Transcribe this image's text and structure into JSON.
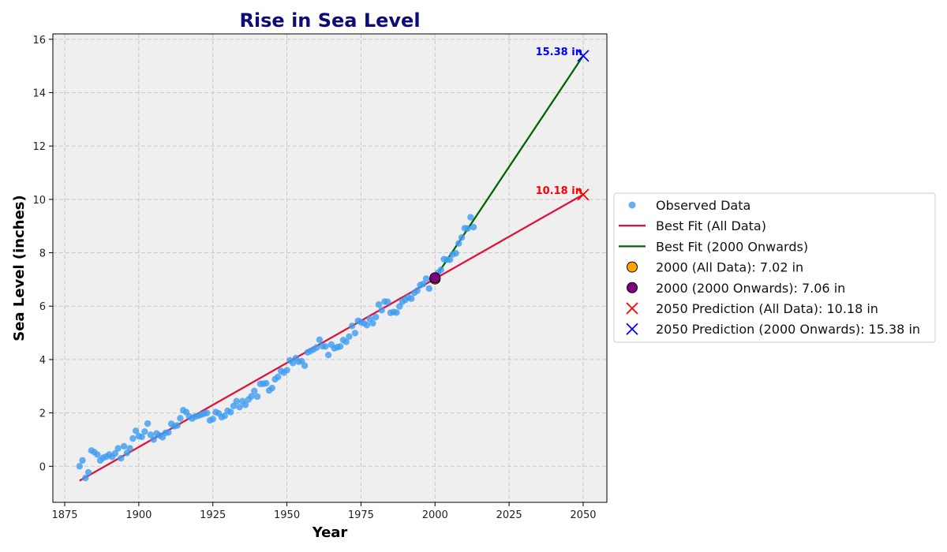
{
  "colors": {
    "plot_background": "#efefef",
    "grid": "#c8c8c8",
    "title": "#0b0b7a",
    "observed": "#3d9cf0",
    "fit_all": "#dc143c",
    "fit_recent": "#006400",
    "marker_2000_all": "#ffa500",
    "marker_2000_recent": "#800080",
    "pred_all": "#ff0000",
    "pred_recent": "#0000ff"
  },
  "chart_data": {
    "type": "scatter",
    "title": "Rise in Sea Level",
    "xlabel": "Year",
    "ylabel": "Sea Level (inches)",
    "xlim": [
      1871,
      2058
    ],
    "ylim": [
      -1.35,
      16.2
    ],
    "xticks": [
      1875,
      1900,
      1925,
      1950,
      1975,
      2000,
      2025,
      2050
    ],
    "yticks": [
      0,
      2,
      4,
      6,
      8,
      10,
      12,
      14,
      16
    ],
    "grid": true,
    "legend_position": "center-right-outside",
    "series": [
      {
        "name": "Observed Data",
        "kind": "scatter",
        "x": [
          1880,
          1881,
          1882,
          1883,
          1884,
          1885,
          1886,
          1887,
          1888,
          1889,
          1890,
          1891,
          1892,
          1893,
          1894,
          1895,
          1896,
          1897,
          1898,
          1899,
          1900,
          1901,
          1902,
          1903,
          1904,
          1905,
          1906,
          1907,
          1908,
          1909,
          1910,
          1911,
          1912,
          1913,
          1914,
          1915,
          1916,
          1917,
          1918,
          1919,
          1920,
          1921,
          1922,
          1923,
          1924,
          1925,
          1926,
          1927,
          1928,
          1929,
          1930,
          1931,
          1932,
          1933,
          1934,
          1935,
          1936,
          1937,
          1938,
          1939,
          1940,
          1941,
          1942,
          1943,
          1944,
          1945,
          1946,
          1947,
          1948,
          1949,
          1950,
          1951,
          1952,
          1953,
          1954,
          1955,
          1956,
          1957,
          1958,
          1959,
          1960,
          1961,
          1962,
          1963,
          1964,
          1965,
          1966,
          1967,
          1968,
          1969,
          1970,
          1971,
          1972,
          1973,
          1974,
          1975,
          1976,
          1977,
          1978,
          1979,
          1980,
          1981,
          1982,
          1983,
          1984,
          1985,
          1986,
          1987,
          1988,
          1989,
          1990,
          1991,
          1992,
          1993,
          1994,
          1995,
          1996,
          1997,
          1998,
          1999,
          2000,
          2001,
          2002,
          2003,
          2004,
          2005,
          2006,
          2007,
          2008,
          2009,
          2010,
          2011,
          2012,
          2013
        ],
        "y": [
          0.0,
          0.22,
          -0.44,
          -0.23,
          0.59,
          0.53,
          0.44,
          0.22,
          0.32,
          0.36,
          0.44,
          0.35,
          0.48,
          0.67,
          0.3,
          0.75,
          0.5,
          0.67,
          1.04,
          1.33,
          1.13,
          1.1,
          1.3,
          1.6,
          1.18,
          1.0,
          1.23,
          1.16,
          1.09,
          1.25,
          1.27,
          1.59,
          1.5,
          1.53,
          1.8,
          2.1,
          2.03,
          1.87,
          1.79,
          1.86,
          1.89,
          1.93,
          1.97,
          2.0,
          1.72,
          1.77,
          2.03,
          1.98,
          1.84,
          1.89,
          2.08,
          2.03,
          2.26,
          2.44,
          2.22,
          2.44,
          2.3,
          2.5,
          2.62,
          2.82,
          2.61,
          3.09,
          3.09,
          3.11,
          2.84,
          2.93,
          3.26,
          3.35,
          3.57,
          3.51,
          3.6,
          3.97,
          3.87,
          4.05,
          3.92,
          3.94,
          3.77,
          4.27,
          4.32,
          4.38,
          4.45,
          4.74,
          4.5,
          4.49,
          4.17,
          4.56,
          4.42,
          4.46,
          4.49,
          4.73,
          4.66,
          4.86,
          5.26,
          4.99,
          5.45,
          5.4,
          5.36,
          5.29,
          5.52,
          5.36,
          5.59,
          6.06,
          5.85,
          6.17,
          6.16,
          5.75,
          5.78,
          5.76,
          5.99,
          6.17,
          6.24,
          6.33,
          6.28,
          6.5,
          6.58,
          6.79,
          6.83,
          7.03,
          6.66,
          7.01,
          7.06,
          7.25,
          7.36,
          7.76,
          7.74,
          7.74,
          7.94,
          7.98,
          8.35,
          8.57,
          8.92,
          8.91,
          9.33,
          8.96
        ]
      },
      {
        "name": "Best Fit (All Data)",
        "kind": "line",
        "x": [
          1880,
          2050
        ],
        "y": [
          -0.54,
          10.18
        ]
      },
      {
        "name": "Best Fit (2000 Onwards)",
        "kind": "line",
        "x": [
          2000,
          2050
        ],
        "y": [
          7.06,
          15.38
        ]
      },
      {
        "name": "2000 (All Data): 7.02 in",
        "kind": "circle-marker",
        "x": [
          2000
        ],
        "y": [
          7.02
        ]
      },
      {
        "name": "2000 (2000 Onwards): 7.06 in",
        "kind": "circle-marker",
        "x": [
          2000
        ],
        "y": [
          7.06
        ]
      },
      {
        "name": "2050 Prediction (All Data): 10.18 in",
        "kind": "x-marker",
        "x": [
          2050
        ],
        "y": [
          10.18
        ]
      },
      {
        "name": "2050 Prediction (2000 Onwards): 15.38 in",
        "kind": "x-marker",
        "x": [
          2050
        ],
        "y": [
          15.38
        ]
      }
    ],
    "annotations": [
      {
        "text": "15.38 in",
        "x": 2050,
        "y": 15.38,
        "color_key": "pred_recent"
      },
      {
        "text": "10.18 in",
        "x": 2050,
        "y": 10.18,
        "color_key": "pred_all"
      }
    ]
  }
}
